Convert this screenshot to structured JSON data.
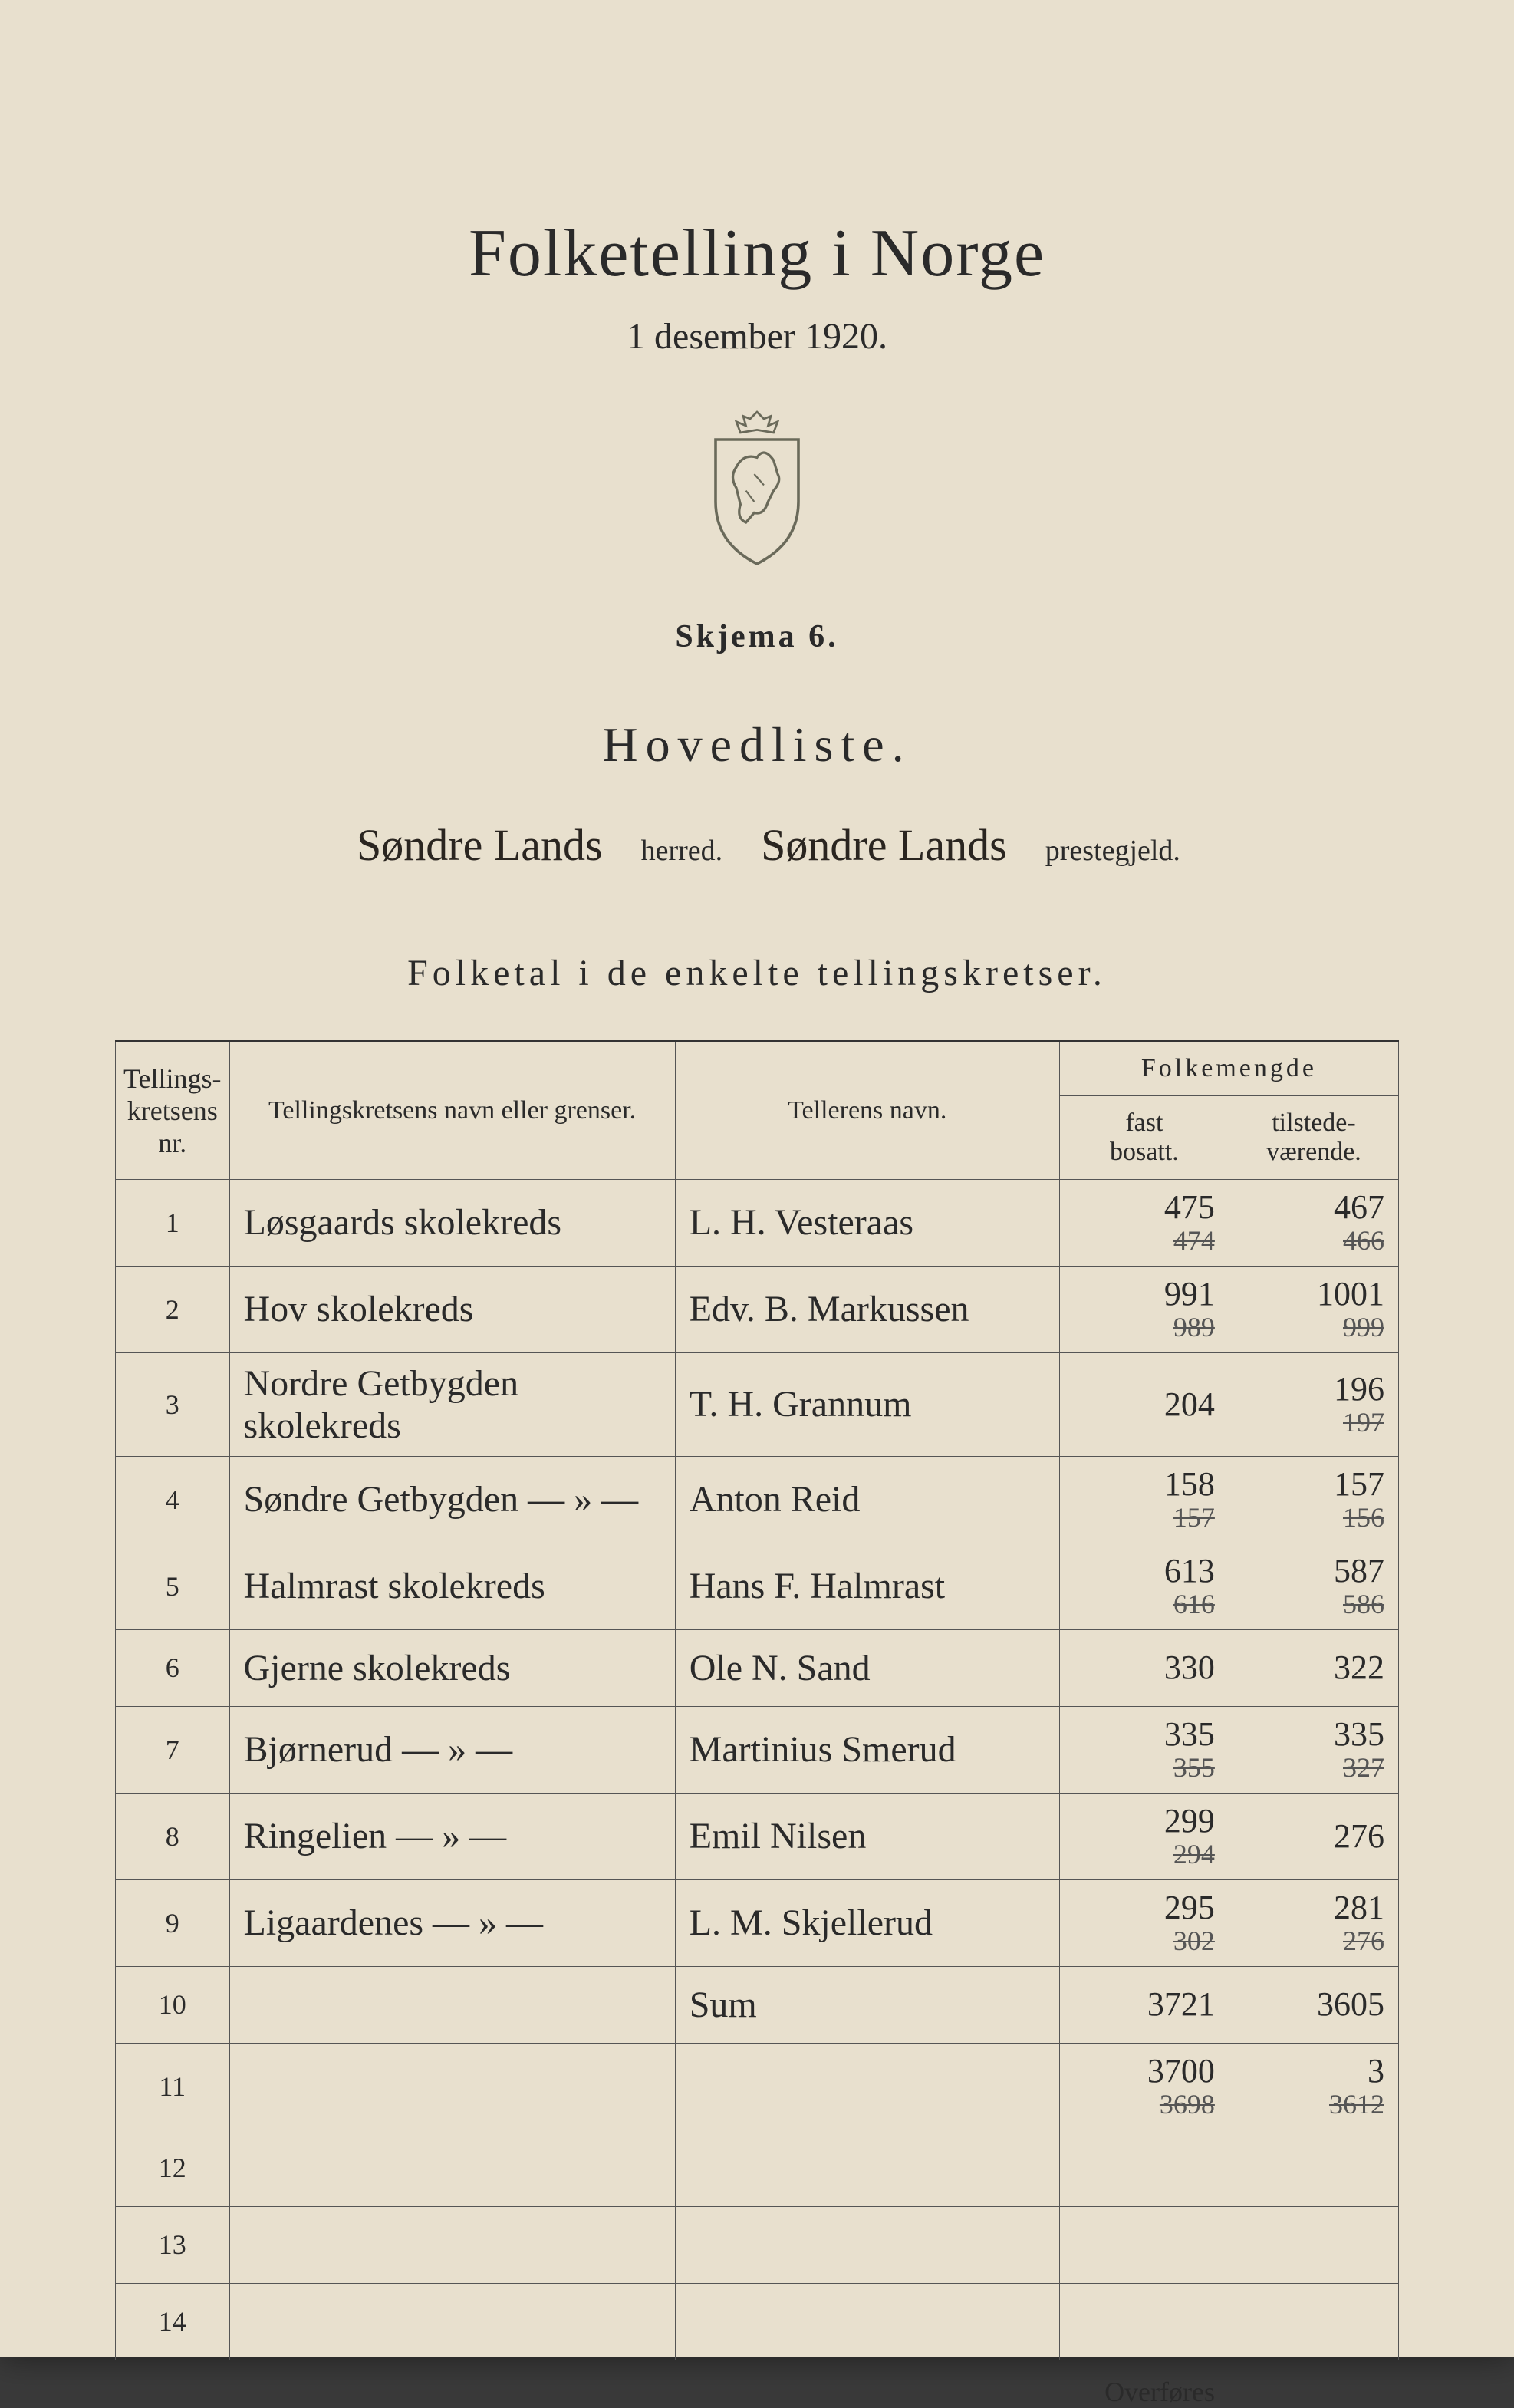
{
  "header": {
    "title": "Folketelling i Norge",
    "date": "1 desember 1920.",
    "skjema": "Skjema 6.",
    "hovedliste": "Hovedliste.",
    "herred_value": "Søndre Lands",
    "herred_label": "herred.",
    "prestegjeld_value": "Søndre Lands",
    "prestegjeld_label": "prestegjeld.",
    "subtitle": "Folketal i de enkelte tellingskretser."
  },
  "table": {
    "headers": {
      "nr": "Tellings-\nkretsens\nnr.",
      "name": "Tellingskretsens navn eller grenser.",
      "teller": "Tellerens navn.",
      "folkemengde": "Folkemengde",
      "fast": "fast\nbosatt.",
      "tilstede": "tilstede-\nværende."
    },
    "rows": [
      {
        "nr": "1",
        "name": "Løsgaards skolekreds",
        "teller": "L. H. Vesteraas",
        "fast_top": "475",
        "fast_bot": "474",
        "til_top": "467",
        "til_bot": "466"
      },
      {
        "nr": "2",
        "name": "Hov skolekreds",
        "teller": "Edv. B. Markussen",
        "fast_top": "991",
        "fast_bot": "989",
        "til_top": "1001",
        "til_bot": "999"
      },
      {
        "nr": "3",
        "name": "Nordre Getbygden skolekreds",
        "teller": "T. H. Grannum",
        "fast_top": "",
        "fast_bot": "204",
        "til_top": "196",
        "til_bot": "197"
      },
      {
        "nr": "4",
        "name": "Søndre Getbygden  — » —",
        "teller": "Anton Reid",
        "fast_top": "158",
        "fast_bot": "157",
        "til_top": "157",
        "til_bot": "156"
      },
      {
        "nr": "5",
        "name": "Halmrast skolekreds",
        "teller": "Hans F. Halmrast",
        "fast_top": "613",
        "fast_bot": "616",
        "til_top": "587",
        "til_bot": "586"
      },
      {
        "nr": "6",
        "name": "Gjerne skolekreds",
        "teller": "Ole N. Sand",
        "fast_top": "",
        "fast_bot": "330",
        "til_top": "",
        "til_bot": "322"
      },
      {
        "nr": "7",
        "name": "Bjørnerud  — » —",
        "teller": "Martinius Smerud",
        "fast_top": "335",
        "fast_bot": "355",
        "til_top": "335",
        "til_bot": "327"
      },
      {
        "nr": "8",
        "name": "Ringelien  — » —",
        "teller": "Emil Nilsen",
        "fast_top": "299",
        "fast_bot": "294",
        "til_top": "",
        "til_bot": "276"
      },
      {
        "nr": "9",
        "name": "Ligaardenes  — » —",
        "teller": "L. M. Skjellerud",
        "fast_top": "295",
        "fast_bot": "302",
        "til_top": "281",
        "til_bot": "276"
      },
      {
        "nr": "10",
        "name": "",
        "teller": "Sum",
        "fast_top": "",
        "fast_bot": "3721",
        "til_top": "",
        "til_bot": "3605"
      },
      {
        "nr": "11",
        "name": "",
        "teller": "",
        "fast_top": "3700",
        "fast_bot": "3698",
        "til_top": "3",
        "til_bot": "3612"
      },
      {
        "nr": "12",
        "name": "",
        "teller": "",
        "fast_top": "",
        "fast_bot": "",
        "til_top": "",
        "til_bot": ""
      },
      {
        "nr": "13",
        "name": "",
        "teller": "",
        "fast_top": "",
        "fast_bot": "",
        "til_top": "",
        "til_bot": ""
      },
      {
        "nr": "14",
        "name": "",
        "teller": "",
        "fast_top": "",
        "fast_bot": "",
        "til_top": "",
        "til_bot": ""
      }
    ]
  },
  "footer": {
    "overfores": "Overføres"
  },
  "colors": {
    "paper": "#e8e0ce",
    "ink": "#2a2a2a",
    "handwriting": "#2a2520",
    "border": "#555"
  }
}
